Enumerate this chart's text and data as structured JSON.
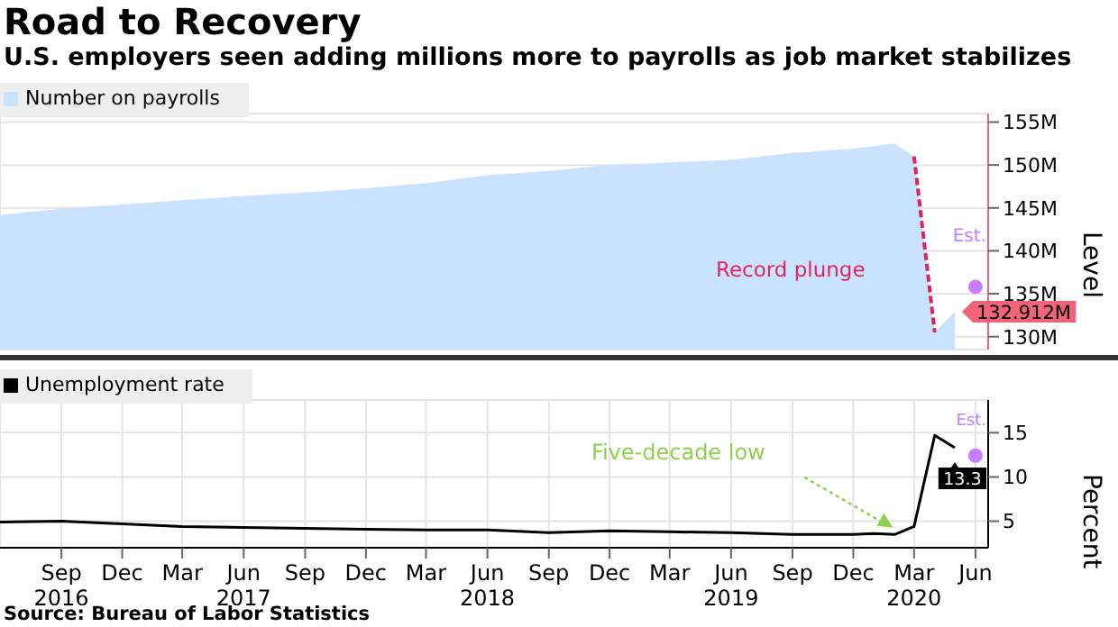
{
  "chart_data": [
    {
      "type": "area",
      "title": "Road to Recovery",
      "subtitle": "U.S. employers seen adding millions more to payrolls as job market stabilizes",
      "ylabel": "Level",
      "xlim": [
        "2016-06-01",
        "2020-06-20"
      ],
      "ylim": [
        128.5,
        156
      ],
      "yticks": [
        {
          "value": 130,
          "label": "130M"
        },
        {
          "value": 135,
          "label": "135M"
        },
        {
          "value": 140,
          "label": "140M"
        },
        {
          "value": 145,
          "label": "145M"
        },
        {
          "value": 150,
          "label": "150M"
        },
        {
          "value": 155,
          "label": "155M"
        }
      ],
      "xticks": [
        {
          "value": "2016-09",
          "label": null
        },
        {
          "value": "2016-12",
          "label": null
        },
        {
          "value": "2017-03",
          "label": null
        },
        {
          "value": "2017-06",
          "label": null
        },
        {
          "value": "2017-09",
          "label": null
        },
        {
          "value": "2017-12",
          "label": null
        },
        {
          "value": "2018-03",
          "label": null
        },
        {
          "value": "2018-06",
          "label": null
        },
        {
          "value": "2018-09",
          "label": null
        },
        {
          "value": "2018-12",
          "label": null
        },
        {
          "value": "2019-03",
          "label": null
        },
        {
          "value": "2019-06",
          "label": null
        },
        {
          "value": "2019-09",
          "label": null
        },
        {
          "value": "2019-12",
          "label": null
        },
        {
          "value": "2020-03",
          "label": null
        },
        {
          "value": "2020-06",
          "label": null
        }
      ],
      "tick_labels": "y",
      "grid": true,
      "legend": "top left",
      "series": [
        {
          "name": "Number on payrolls",
          "type": "area",
          "color": "#c9e3ff",
          "x": [
            "2016-06",
            "2016-09",
            "2016-12",
            "2017-03",
            "2017-06",
            "2017-09",
            "2017-12",
            "2018-03",
            "2018-06",
            "2018-09",
            "2018-12",
            "2019-03",
            "2019-06",
            "2019-09",
            "2019-12",
            "2020-02",
            "2020-03",
            "2020-04",
            "2020-05"
          ],
          "values": [
            144.2,
            144.9,
            145.4,
            145.9,
            146.4,
            146.8,
            147.3,
            147.9,
            148.8,
            149.3,
            150.0,
            150.3,
            150.6,
            151.4,
            151.9,
            152.5,
            151.0,
            130.5,
            132.912
          ],
          "value_labels": [
            null,
            null,
            null,
            null,
            null,
            null,
            null,
            null,
            null,
            null,
            null,
            null,
            null,
            null,
            null,
            null,
            null,
            null,
            "132.912M"
          ]
        },
        {
          "type": "line",
          "color": "#e0245a",
          "line_style": "dashed",
          "x": [
            "2020-03",
            "2020-04"
          ],
          "values": [
            151.0,
            130.5
          ]
        },
        {
          "type": "scatter",
          "color": "#c77dff",
          "marker": "circle",
          "x": [
            "2020-06"
          ],
          "values": [
            135.8
          ]
        }
      ],
      "annotations": [
        "Record plunge",
        "Est."
      ]
    },
    {
      "type": "line",
      "ylabel": "Percent",
      "xlim": [
        "2016-06-01",
        "2020-06-20"
      ],
      "ylim": [
        2,
        18.7
      ],
      "yticks": [
        5,
        10,
        15
      ],
      "xticks": [
        {
          "value": "2016-09",
          "label": "Sep\n2016"
        },
        {
          "value": "2016-12",
          "label": "Dec"
        },
        {
          "value": "2017-03",
          "label": "Mar"
        },
        {
          "value": "2017-06",
          "label": "Jun\n2017"
        },
        {
          "value": "2017-09",
          "label": "Sep"
        },
        {
          "value": "2017-12",
          "label": "Dec"
        },
        {
          "value": "2018-03",
          "label": "Mar"
        },
        {
          "value": "2018-06",
          "label": "Jun\n2018"
        },
        {
          "value": "2018-09",
          "label": "Sep"
        },
        {
          "value": "2018-12",
          "label": "Dec"
        },
        {
          "value": "2019-03",
          "label": "Mar"
        },
        {
          "value": "2019-06",
          "label": "Jun\n2019"
        },
        {
          "value": "2019-09",
          "label": "Sep"
        },
        {
          "value": "2019-12",
          "label": "Dec"
        },
        {
          "value": "2020-03",
          "label": "Mar\n2020"
        },
        {
          "value": "2020-06",
          "label": "Jun"
        }
      ],
      "grid": true,
      "legend": "top left",
      "series": [
        {
          "name": "Unemployment rate",
          "type": "line",
          "color": "#000000",
          "x": [
            "2016-06",
            "2016-09",
            "2016-12",
            "2017-03",
            "2017-06",
            "2017-09",
            "2017-12",
            "2018-03",
            "2018-06",
            "2018-09",
            "2018-12",
            "2019-03",
            "2019-06",
            "2019-09",
            "2019-12",
            "2020-01",
            "2020-02",
            "2020-03",
            "2020-04",
            "2020-05"
          ],
          "values": [
            4.9,
            5.0,
            4.7,
            4.4,
            4.3,
            4.2,
            4.1,
            4.0,
            4.0,
            3.7,
            3.9,
            3.8,
            3.7,
            3.5,
            3.5,
            3.6,
            3.5,
            4.4,
            14.7,
            13.3
          ],
          "value_labels": [
            null,
            null,
            null,
            null,
            null,
            null,
            null,
            null,
            null,
            null,
            null,
            null,
            null,
            null,
            null,
            null,
            null,
            null,
            null,
            "13.3"
          ]
        },
        {
          "type": "scatter",
          "color": "#c77dff",
          "marker": "circle",
          "x": [
            "2020-06"
          ],
          "values": [
            12.4
          ]
        }
      ],
      "annotations": [
        "Five-decade low",
        "Est.",
        "Source: Bureau of Labor Statistics"
      ]
    }
  ]
}
